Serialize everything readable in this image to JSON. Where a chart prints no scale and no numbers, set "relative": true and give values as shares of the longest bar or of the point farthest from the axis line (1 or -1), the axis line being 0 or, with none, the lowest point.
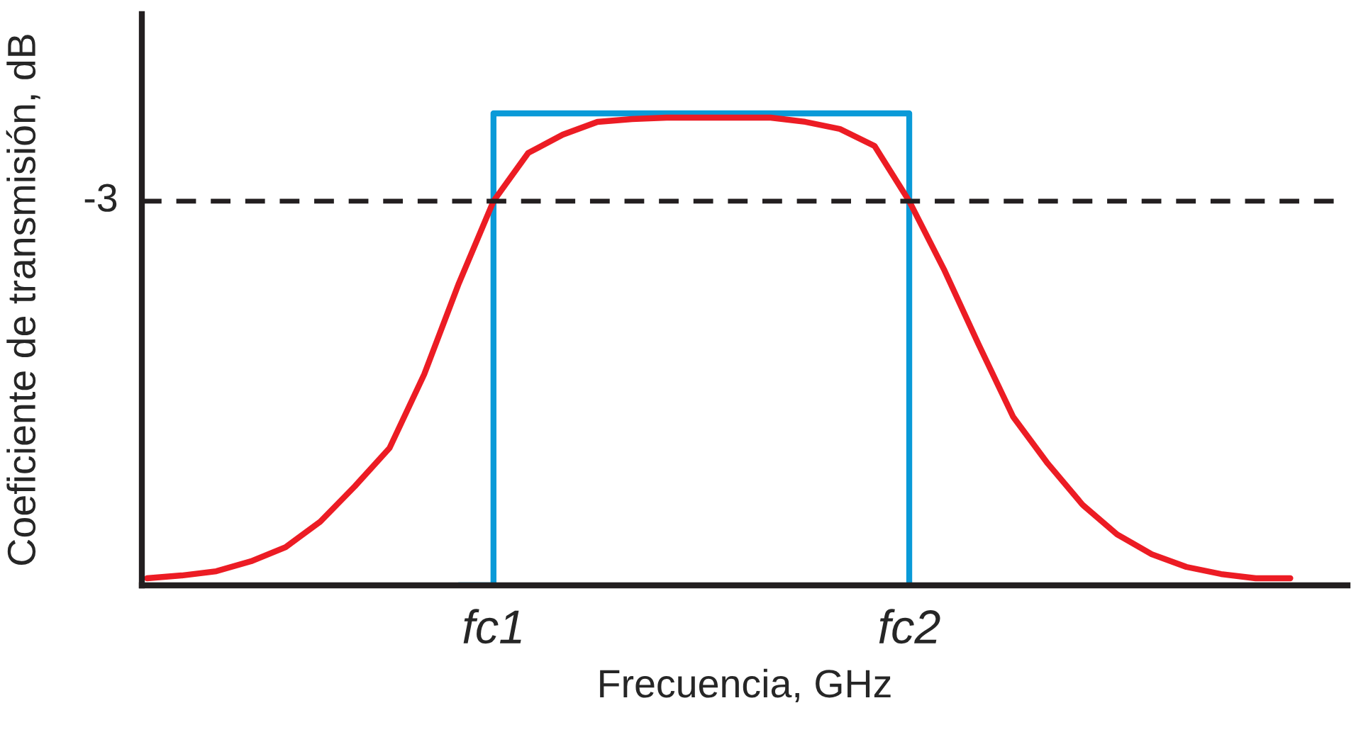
{
  "chart_data": {
    "type": "line",
    "relative": true,
    "xlabel": "Frecuencia, GHz",
    "ylabel": "Coeficiente de transmisión, dB",
    "categories": [
      null,
      null,
      null,
      null,
      null,
      null,
      null,
      null,
      null,
      null,
      "fc1",
      null,
      null,
      null,
      null,
      null,
      null,
      null,
      null,
      null,
      null,
      null,
      "fc2",
      null,
      null,
      null,
      null,
      null,
      null,
      null,
      null,
      null,
      null,
      null
    ],
    "series": [
      {
        "type": "step",
        "color": "#0a9ad8",
        "values": [
          null,
          null,
          null,
          null,
          null,
          null,
          null,
          null,
          null,
          0,
          1,
          1,
          1,
          1,
          1,
          1,
          1,
          1,
          1,
          1,
          1,
          1,
          0,
          null,
          null,
          null,
          null,
          null,
          null,
          null,
          null,
          null,
          null,
          null
        ]
      },
      {
        "color": "#ec1c24",
        "values": [
          0.015,
          0.021,
          0.03,
          0.051,
          0.081,
          0.135,
          0.21,
          0.291,
          0.447,
          0.64,
          0.814,
          0.916,
          0.955,
          0.982,
          0.988,
          0.991,
          0.991,
          0.991,
          0.991,
          0.982,
          0.967,
          0.931,
          0.814,
          0.67,
          0.511,
          0.357,
          0.258,
          0.171,
          0.108,
          0.066,
          0.039,
          0.024,
          0.015,
          0.015
        ]
      }
    ],
    "ref_lines": [
      {
        "axis": "y",
        "value": 0.814,
        "color": "#231f20",
        "line_style": "dashed"
      }
    ],
    "annotations": [
      "-3"
    ],
    "grid": false,
    "legend": false,
    "marker": "none",
    "line_style": "solid"
  }
}
